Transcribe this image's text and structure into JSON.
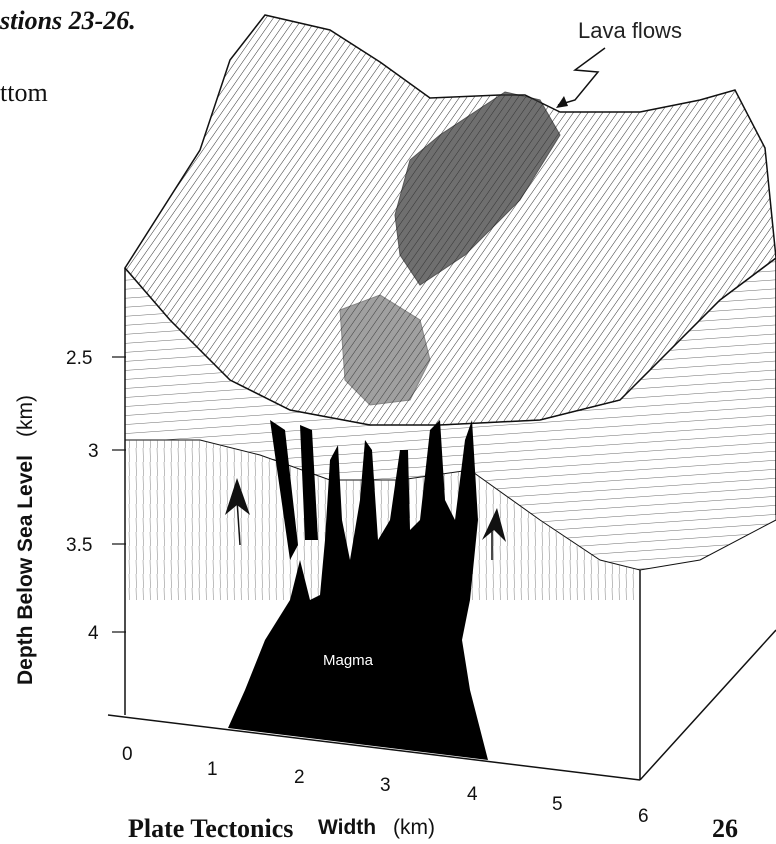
{
  "header": {
    "text": "stions 23-26."
  },
  "fragment": {
    "text": "ttom"
  },
  "footer": {
    "left": "Plate Tectonics",
    "right": "26"
  },
  "diagram": {
    "annotations": {
      "lava_flows": "Lava flows",
      "magma": "Magma"
    },
    "y_axis": {
      "title": "Depth Below Sea Level",
      "unit": "(km)",
      "ticks": [
        "2.5",
        "3",
        "3.5",
        "4"
      ]
    },
    "x_axis": {
      "title": "Width",
      "unit": "(km)",
      "ticks": [
        "0",
        "1",
        "2",
        "3",
        "4",
        "5",
        "6"
      ]
    }
  },
  "colors": {
    "ink": "#111111",
    "magma": "#000000",
    "paper": "#ffffff"
  }
}
